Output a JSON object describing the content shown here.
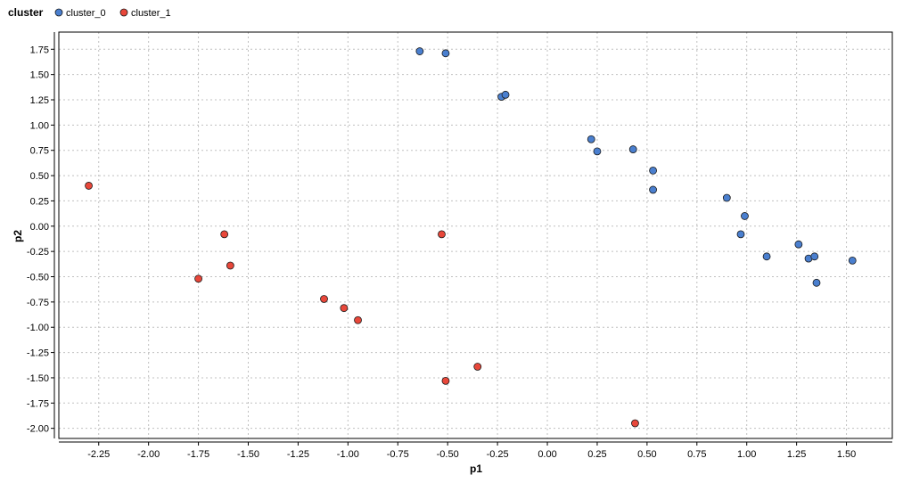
{
  "chart_data": {
    "type": "scatter",
    "title": "",
    "xlabel": "p1",
    "ylabel": "p2",
    "xlim": [
      -2.45,
      1.73
    ],
    "ylim": [
      -2.1,
      1.92
    ],
    "grid": true,
    "legend_title": "cluster",
    "legend_placement": "top-left",
    "x_ticks": [
      -2.25,
      -2.0,
      -1.75,
      -1.5,
      -1.25,
      -1.0,
      -0.75,
      -0.5,
      -0.25,
      0.0,
      0.25,
      0.5,
      0.75,
      1.0,
      1.25,
      1.5
    ],
    "x_tick_labels": [
      "-2.25",
      "-2.00",
      "-1.75",
      "-1.50",
      "-1.25",
      "-1.00",
      "-0.75",
      "-0.50",
      "-0.25",
      "0.00",
      "0.25",
      "0.50",
      "0.75",
      "1.00",
      "1.25",
      "1.50"
    ],
    "y_ticks": [
      1.75,
      1.5,
      1.25,
      1.0,
      0.75,
      0.5,
      0.25,
      0.0,
      -0.25,
      -0.5,
      -0.75,
      -1.0,
      -1.25,
      -1.5,
      -1.75,
      -2.0
    ],
    "y_tick_labels": [
      "1.75",
      "1.50",
      "1.25",
      "1.00",
      "0.75",
      "0.50",
      "0.25",
      "0.00",
      "-0.25",
      "-0.50",
      "-0.75",
      "-1.00",
      "-1.25",
      "-1.50",
      "-1.75",
      "-2.00"
    ],
    "series": [
      {
        "name": "cluster_0",
        "color": "#4a7fcf",
        "x": [
          -0.64,
          -0.51,
          -0.23,
          -0.21,
          0.22,
          0.25,
          0.43,
          0.53,
          0.53,
          0.9,
          0.99,
          0.97,
          1.1,
          1.26,
          1.31,
          1.34,
          1.35,
          1.53
        ],
        "y": [
          1.73,
          1.71,
          1.28,
          1.3,
          0.86,
          0.74,
          0.76,
          0.55,
          0.36,
          0.28,
          0.1,
          -0.08,
          -0.3,
          -0.18,
          -0.32,
          -0.3,
          -0.56,
          -0.34
        ]
      },
      {
        "name": "cluster_1",
        "color": "#e8473a",
        "x": [
          -2.3,
          -1.62,
          -1.59,
          -1.75,
          -1.12,
          -1.02,
          -0.95,
          -0.53,
          -0.51,
          -0.35,
          0.44
        ],
        "y": [
          0.4,
          -0.08,
          -0.39,
          -0.52,
          -0.72,
          -0.81,
          -0.93,
          -0.08,
          -1.53,
          -1.39,
          -1.95
        ]
      }
    ]
  }
}
